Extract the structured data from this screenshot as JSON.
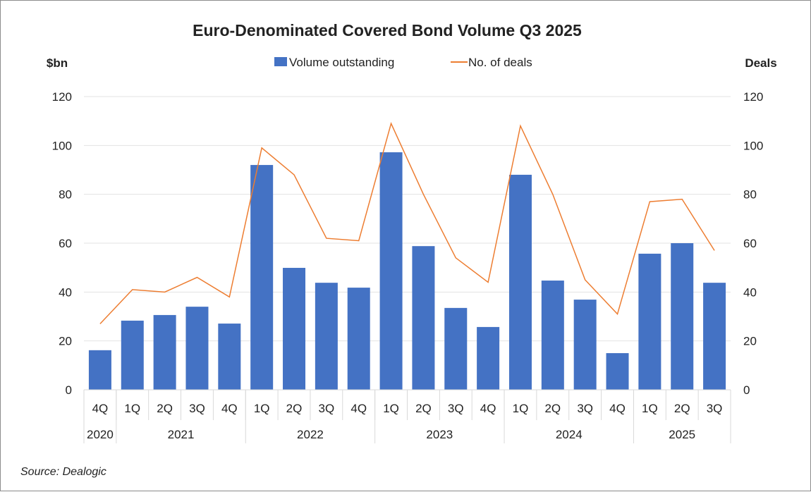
{
  "chart_data": {
    "type": "bar+line",
    "title": "Euro-Denominated Covered Bond Volume Q3 2025",
    "ylabel_left": "$bn",
    "ylabel_right": "Deals",
    "ylim_left": [
      0,
      120
    ],
    "ylim_right": [
      0,
      120
    ],
    "yticks": [
      0,
      20,
      40,
      60,
      80,
      100,
      120
    ],
    "grid": true,
    "legend_position": "top",
    "categories": [
      "4Q",
      "1Q",
      "2Q",
      "3Q",
      "4Q",
      "1Q",
      "2Q",
      "3Q",
      "4Q",
      "1Q",
      "2Q",
      "3Q",
      "4Q",
      "1Q",
      "2Q",
      "3Q",
      "4Q",
      "1Q",
      "2Q",
      "3Q"
    ],
    "year_groups": [
      {
        "label": "2020",
        "count": 1
      },
      {
        "label": "2021",
        "count": 4
      },
      {
        "label": "2022",
        "count": 4
      },
      {
        "label": "2023",
        "count": 4
      },
      {
        "label": "2024",
        "count": 4
      },
      {
        "label": "2025",
        "count": 3
      }
    ],
    "series": [
      {
        "name": "Volume outstanding",
        "type": "bar",
        "axis": "left",
        "color": "#4472C4",
        "values": [
          16.2,
          28.3,
          30.6,
          34.0,
          27.1,
          92.0,
          49.9,
          43.8,
          41.8,
          97.2,
          58.8,
          33.5,
          25.7,
          88.0,
          44.7,
          36.9,
          15.0,
          55.7,
          60.0,
          43.8
        ]
      },
      {
        "name": "No. of deals",
        "type": "line",
        "axis": "right",
        "color": "#ED7D31",
        "values": [
          27,
          41,
          40,
          46,
          38,
          99,
          88,
          62,
          61,
          109,
          80,
          54,
          44,
          108,
          80,
          45,
          31,
          77,
          78,
          57
        ]
      }
    ]
  },
  "source": "Source: Dealogic"
}
